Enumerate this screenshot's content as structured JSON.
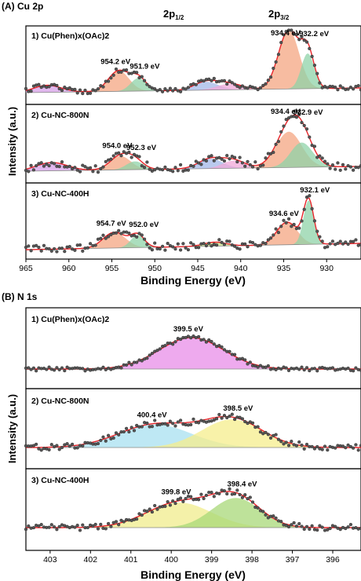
{
  "panel_a": {
    "label": "(A) Cu 2p",
    "peak_header_left": "2p",
    "peak_header_left_sub": "1/2",
    "peak_header_right": "2p",
    "peak_header_right_sub": "3/2"
  },
  "panel_b": {
    "label": "(B) N 1s"
  },
  "chart_data": [
    {
      "type": "line",
      "title": "(A) Cu 2p",
      "xlabel": "Binding Energy (eV)",
      "ylabel": "Intensity (a.u.)",
      "xlim": [
        965,
        926
      ],
      "x_reversed": true,
      "xticks": [
        965,
        960,
        955,
        950,
        945,
        940,
        935,
        930
      ],
      "grid": false,
      "series": [
        {
          "name": "1) Cu(Phen)x(OAc)2",
          "peaks": [
            {
              "label": "954.2 eV",
              "position": 954.2,
              "color": "#f4a582"
            },
            {
              "label": "951.9 eV",
              "position": 951.9,
              "color": "#8fd3a8"
            },
            {
              "label": "934.4 eV",
              "position": 934.4,
              "color": "#f4a582"
            },
            {
              "label": "932.2 eV",
              "position": 932.2,
              "color": "#8fd3a8"
            }
          ],
          "components": [
            {
              "center": 962.5,
              "height": 0.12,
              "width": 1.6,
              "color": "#d7a0e8"
            },
            {
              "center": 954.2,
              "height": 0.35,
              "width": 1.2,
              "color": "#f4a582"
            },
            {
              "center": 951.9,
              "height": 0.22,
              "width": 0.9,
              "color": "#8fd3a8"
            },
            {
              "center": 944.0,
              "height": 0.14,
              "width": 1.4,
              "color": "#a3b8e8"
            },
            {
              "center": 941.3,
              "height": 0.1,
              "width": 1.5,
              "color": "#f0a8d8"
            },
            {
              "center": 934.4,
              "height": 1.0,
              "width": 1.2,
              "color": "#f4a582"
            },
            {
              "center": 932.2,
              "height": 0.6,
              "width": 0.75,
              "color": "#8fd3a8"
            }
          ]
        },
        {
          "name": "2) Cu-NC-800N",
          "peaks": [
            {
              "label": "954.0 eV",
              "position": 954.0,
              "color": "#f4a582"
            },
            {
              "label": "952.3 eV",
              "position": 952.3,
              "color": "#8fd3a8"
            },
            {
              "label": "934.4 eV",
              "position": 934.4,
              "color": "#f4a582"
            },
            {
              "label": "932.9 eV",
              "position": 932.9,
              "color": "#8fd3a8"
            }
          ],
          "components": [
            {
              "center": 962.0,
              "height": 0.15,
              "width": 1.8,
              "color": "#d7a0e8"
            },
            {
              "center": 954.0,
              "height": 0.25,
              "width": 1.2,
              "color": "#f4a582"
            },
            {
              "center": 952.3,
              "height": 0.15,
              "width": 1.0,
              "color": "#8fd3a8"
            },
            {
              "center": 943.5,
              "height": 0.18,
              "width": 1.4,
              "color": "#a3b8e8"
            },
            {
              "center": 940.8,
              "height": 0.14,
              "width": 1.3,
              "color": "#f0a8d8"
            },
            {
              "center": 934.4,
              "height": 0.65,
              "width": 1.5,
              "color": "#f4a582"
            },
            {
              "center": 932.9,
              "height": 0.45,
              "width": 1.3,
              "color": "#8fd3a8"
            }
          ]
        },
        {
          "name": "3) Cu-NC-400H",
          "peaks": [
            {
              "label": "954.7 eV",
              "position": 954.7,
              "color": "#f4a582"
            },
            {
              "label": "952.0 eV",
              "position": 952.0,
              "color": "#8fd3a8"
            },
            {
              "label": "934.6 eV",
              "position": 934.6,
              "color": "#f4a582"
            },
            {
              "label": "932.1 eV",
              "position": 932.1,
              "color": "#8fd3a8"
            }
          ],
          "components": [
            {
              "center": 954.7,
              "height": 0.28,
              "width": 1.3,
              "color": "#f4a582"
            },
            {
              "center": 952.0,
              "height": 0.22,
              "width": 0.8,
              "color": "#8fd3a8"
            },
            {
              "center": 943.0,
              "height": 0.07,
              "width": 1.3,
              "color": "#c8e08a"
            },
            {
              "center": 934.6,
              "height": 0.4,
              "width": 1.2,
              "color": "#f4a582"
            },
            {
              "center": 932.1,
              "height": 0.78,
              "width": 0.6,
              "color": "#8fd3a8"
            }
          ]
        }
      ]
    },
    {
      "type": "line",
      "title": "(B) N 1s",
      "xlabel": "Binding Energy (eV)",
      "ylabel": "Intensity (a.u.)",
      "xlim": [
        403.6,
        395.3
      ],
      "x_reversed": true,
      "xticks": [
        403,
        402,
        401,
        400,
        399,
        398,
        397,
        396
      ],
      "grid": false,
      "series": [
        {
          "name": "1) Cu(Phen)x(OAc)2",
          "peaks": [
            {
              "label": "399.5 eV",
              "position": 399.5,
              "color": "#e88ee8"
            }
          ],
          "components": [
            {
              "center": 399.5,
              "height": 0.8,
              "width": 0.8,
              "color": "#e88ee8"
            }
          ]
        },
        {
          "name": "2) Cu-NC-800N",
          "peaks": [
            {
              "label": "400.4 eV",
              "position": 400.4,
              "color": "#a8e0f0"
            },
            {
              "label": "398.5 eV",
              "position": 398.5,
              "color": "#f5ee8c"
            }
          ],
          "components": [
            {
              "center": 400.4,
              "height": 0.45,
              "width": 0.9,
              "color": "#a8e0f0"
            },
            {
              "center": 398.5,
              "height": 0.55,
              "width": 0.75,
              "color": "#f5ee8c"
            }
          ]
        },
        {
          "name": "3) Cu-NC-400H",
          "peaks": [
            {
              "label": "399.8 eV",
              "position": 399.8,
              "color": "#f0ec8c"
            },
            {
              "label": "398.4 eV",
              "position": 398.4,
              "color": "#a8d878"
            }
          ],
          "components": [
            {
              "center": 399.8,
              "height": 0.55,
              "width": 0.8,
              "color": "#f0ec8c"
            },
            {
              "center": 398.4,
              "height": 0.65,
              "width": 0.6,
              "color": "#a8d878"
            }
          ]
        }
      ]
    }
  ]
}
